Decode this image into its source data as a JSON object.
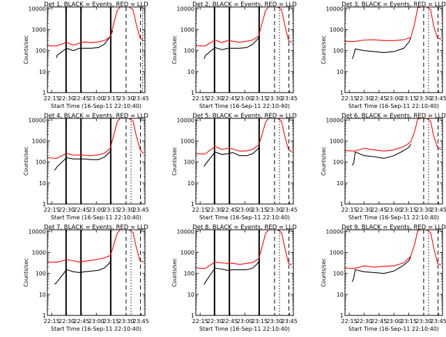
{
  "figure": {
    "xlabel": "Start Time (16-Sep-11 22:10:40)",
    "ylabel": "Counts/sec",
    "x_ticks": [
      "22:15",
      "22:30",
      "22:45",
      "23:00",
      "23:15",
      "23:30",
      "23:45"
    ],
    "y_ticks": [
      "1",
      "10",
      "100",
      "1000",
      "10000"
    ],
    "colors": {
      "events": "#000000",
      "lld": "#ff0000"
    }
  },
  "chart_data": [
    {
      "type": "line",
      "title": "Det 1, BLACK = Events, RED = LLD",
      "x_label": "Start Time (16-Sep-11 22:10:40)",
      "y_label": "Counts/sec",
      "y_scale": "log",
      "ylim": [
        1,
        12000
      ],
      "xlim": [
        "22:10:40",
        "23:49:00"
      ],
      "grid": false,
      "solid_vlines": [
        "22:29:30",
        "22:44:30",
        "23:14:30"
      ],
      "dashed_vlines": [
        "23:30:00",
        "23:44:30"
      ],
      "dotted_vlines": [
        "23:46:30"
      ],
      "series": [
        {
          "name": "Events",
          "color": "#000000",
          "x": [
            "22:10:40",
            "22:18:00",
            "22:20:00",
            "22:20:30",
            "22:30:00",
            "22:37:00",
            "22:43:00",
            "22:48:00",
            "22:55:00",
            "23:02:00",
            "23:08:00",
            "23:13:00",
            "23:15:00",
            "23:16:30",
            "23:17:00"
          ],
          "y": [
            null,
            null,
            45,
            60,
            130,
            100,
            130,
            130,
            130,
            140,
            200,
            400,
            600,
            900,
            null
          ]
        },
        {
          "name": "LLD",
          "color": "#ff0000",
          "x": [
            "22:10:40",
            "22:20:00",
            "22:30:00",
            "22:37:00",
            "22:43:00",
            "22:48:00",
            "22:55:00",
            "23:02:00",
            "23:08:00",
            "23:14:00",
            "23:17:00",
            "23:21:00",
            "23:24:00",
            "23:28:00",
            "23:33:00",
            "23:37:00",
            "23:40:00",
            "23:44:00",
            "23:47:30"
          ],
          "y": [
            170,
            165,
            250,
            180,
            230,
            260,
            240,
            260,
            300,
            450,
            1500,
            8000,
            12000,
            12000,
            12000,
            9000,
            2000,
            400,
            300
          ]
        }
      ]
    },
    {
      "type": "line",
      "title": "Det 2, BLACK = Events, RED = LLD",
      "x_label": "Start Time (16-Sep-11 22:10:40)",
      "y_label": "Counts/sec",
      "y_scale": "log",
      "ylim": [
        1,
        12000
      ],
      "xlim": [
        "22:10:40",
        "23:49:00"
      ],
      "grid": false,
      "solid_vlines": [
        "22:29:30",
        "22:44:30",
        "23:14:30"
      ],
      "dashed_vlines": [
        "23:30:00",
        "23:44:30"
      ],
      "dotted_vlines": [
        "23:35:00"
      ],
      "series": [
        {
          "name": "Events",
          "color": "#000000",
          "x": [
            "22:10:40",
            "22:19:00",
            "22:20:30",
            "22:30:00",
            "22:37:00",
            "22:43:00",
            "22:48:00",
            "22:55:00",
            "23:02:00",
            "23:08:00",
            "23:13:00",
            "23:15:00"
          ],
          "y": [
            null,
            40,
            60,
            140,
            110,
            130,
            130,
            130,
            140,
            200,
            350,
            500
          ]
        },
        {
          "name": "LLD",
          "color": "#ff0000",
          "x": [
            "22:10:40",
            "22:20:00",
            "22:30:00",
            "22:37:00",
            "22:43:00",
            "22:48:00",
            "22:55:00",
            "23:02:00",
            "23:08:00",
            "23:14:00",
            "23:17:00",
            "23:21:00",
            "23:24:00",
            "23:28:00",
            "23:33:00",
            "23:37:00",
            "23:40:00",
            "23:44:00",
            "23:47:30"
          ],
          "y": [
            170,
            165,
            320,
            240,
            300,
            280,
            250,
            280,
            320,
            500,
            1700,
            8000,
            12000,
            12000,
            12000,
            9000,
            2000,
            300,
            250
          ]
        }
      ]
    },
    {
      "type": "line",
      "title": "Det 3, BLACK = Events, RED = LLD",
      "x_label": "Start Time (16-Sep-11 22:10:40)",
      "y_label": "Counts/sec",
      "y_scale": "log",
      "ylim": [
        1,
        12000
      ],
      "xlim": [
        "22:10:40",
        "23:49:00"
      ],
      "grid": false,
      "solid_vlines": [],
      "dashed_vlines": [
        "23:30:00",
        "23:44:30"
      ],
      "dotted_vlines": [
        "23:35:00"
      ],
      "series": [
        {
          "name": "Events",
          "color": "#000000",
          "x": [
            "22:10:40",
            "22:18:00",
            "22:19:30",
            "22:21:00",
            "22:30:00",
            "22:40:00",
            "22:50:00",
            "23:00:00",
            "23:10:00",
            "23:15:00",
            "23:17:00"
          ],
          "y": [
            null,
            40,
            60,
            120,
            100,
            90,
            80,
            90,
            130,
            250,
            400
          ]
        },
        {
          "name": "LLD",
          "color": "#ff0000",
          "x": [
            "22:10:40",
            "22:20:00",
            "22:30:00",
            "22:40:00",
            "22:50:00",
            "23:00:00",
            "23:10:00",
            "23:17:00",
            "23:21:00",
            "23:24:00",
            "23:28:00",
            "23:33:00",
            "23:37:00",
            "23:40:00",
            "23:44:00",
            "23:47:30"
          ],
          "y": [
            280,
            270,
            320,
            330,
            300,
            300,
            330,
            420,
            2000,
            11000,
            12000,
            12000,
            9000,
            1500,
            400,
            350
          ]
        }
      ]
    },
    {
      "type": "line",
      "title": "Det 4, BLACK = Events, RED = LLD",
      "x_label": "Start Time (16-Sep-11 22:10:40)",
      "y_label": "Counts/sec",
      "y_scale": "log",
      "ylim": [
        1,
        12000
      ],
      "xlim": [
        "22:10:40",
        "23:49:00"
      ],
      "grid": false,
      "solid_vlines": [
        "22:29:30",
        "22:44:30",
        "23:14:30"
      ],
      "dashed_vlines": [
        "23:30:00",
        "23:44:30"
      ],
      "dotted_vlines": [
        "23:35:00"
      ],
      "series": [
        {
          "name": "Events",
          "color": "#000000",
          "x": [
            "22:10:40",
            "22:18:00",
            "22:20:30",
            "22:30:00",
            "22:37:00",
            "22:43:00",
            "22:48:00",
            "22:55:00",
            "23:02:00",
            "23:08:00",
            "23:13:00",
            "23:15:00"
          ],
          "y": [
            null,
            40,
            60,
            160,
            140,
            140,
            140,
            130,
            130,
            170,
            280,
            400
          ]
        },
        {
          "name": "LLD",
          "color": "#ff0000",
          "x": [
            "22:10:40",
            "22:20:00",
            "22:30:00",
            "22:37:00",
            "22:43:00",
            "22:48:00",
            "22:55:00",
            "23:02:00",
            "23:08:00",
            "23:14:00",
            "23:17:00",
            "23:21:00",
            "23:24:00",
            "23:28:00",
            "23:33:00",
            "23:37:00",
            "23:40:00",
            "23:44:00",
            "23:47:30"
          ],
          "y": [
            160,
            150,
            260,
            210,
            220,
            210,
            200,
            220,
            260,
            450,
            1500,
            8000,
            12000,
            12000,
            12000,
            9000,
            2000,
            400,
            250
          ]
        }
      ]
    },
    {
      "type": "line",
      "title": "Det 5, BLACK = Events, RED = LLD",
      "x_label": "Start Time (16-Sep-11 22:10:40)",
      "y_label": "Counts/sec",
      "y_scale": "log",
      "ylim": [
        1,
        12000
      ],
      "xlim": [
        "22:10:40",
        "23:49:00"
      ],
      "grid": false,
      "solid_vlines": [
        "22:29:30",
        "22:44:30",
        "23:14:30"
      ],
      "dashed_vlines": [
        "23:30:00",
        "23:44:30"
      ],
      "dotted_vlines": [
        "23:35:00"
      ],
      "series": [
        {
          "name": "Events",
          "color": "#000000",
          "x": [
            "22:10:40",
            "22:19:00",
            "22:20:30",
            "22:30:00",
            "22:37:00",
            "22:43:00",
            "22:48:00",
            "22:55:00",
            "23:02:00",
            "23:08:00",
            "23:13:00",
            "23:15:00"
          ],
          "y": [
            null,
            60,
            80,
            300,
            230,
            250,
            280,
            200,
            200,
            250,
            400,
            600
          ]
        },
        {
          "name": "LLD",
          "color": "#ff0000",
          "x": [
            "22:10:40",
            "22:20:00",
            "22:30:00",
            "22:37:00",
            "22:43:00",
            "22:48:00",
            "22:55:00",
            "23:02:00",
            "23:08:00",
            "23:14:00",
            "23:17:00",
            "23:21:00",
            "23:24:00",
            "23:28:00",
            "23:33:00",
            "23:37:00",
            "23:40:00",
            "23:44:00",
            "23:47:30"
          ],
          "y": [
            250,
            240,
            550,
            400,
            450,
            420,
            330,
            340,
            400,
            650,
            1700,
            8000,
            12000,
            12000,
            12000,
            9000,
            2000,
            400,
            300
          ]
        }
      ]
    },
    {
      "type": "line",
      "title": "Det 6, BLACK = Events, RED = LLD",
      "x_label": "Start Time (16-Sep-11 22:10:40)",
      "y_label": "Counts/sec",
      "y_scale": "log",
      "ylim": [
        1,
        12000
      ],
      "xlim": [
        "22:10:40",
        "23:49:00"
      ],
      "grid": false,
      "solid_vlines": [],
      "dashed_vlines": [
        "23:30:00",
        "23:44:30"
      ],
      "dotted_vlines": [
        "23:35:00"
      ],
      "series": [
        {
          "name": "Events",
          "color": "#000000",
          "x": [
            "22:10:40",
            "22:18:00",
            "22:19:30",
            "22:21:00",
            "22:30:00",
            "22:40:00",
            "22:50:00",
            "23:00:00",
            "23:10:00",
            "23:15:00",
            "23:17:00"
          ],
          "y": [
            null,
            70,
            90,
            300,
            200,
            180,
            150,
            200,
            350,
            500,
            700
          ]
        },
        {
          "name": "LLD",
          "color": "#ff0000",
          "x": [
            "22:10:40",
            "22:20:00",
            "22:30:00",
            "22:40:00",
            "22:50:00",
            "23:00:00",
            "23:10:00",
            "23:17:00",
            "23:21:00",
            "23:24:00",
            "23:28:00",
            "23:33:00",
            "23:37:00",
            "23:40:00",
            "23:44:00",
            "23:47:30"
          ],
          "y": [
            350,
            330,
            450,
            380,
            330,
            380,
            550,
            900,
            3000,
            11000,
            12000,
            12000,
            9000,
            1800,
            500,
            400
          ]
        }
      ]
    },
    {
      "type": "line",
      "title": "Det 7, BLACK = Events, RED = LLD",
      "x_label": "Start Time (16-Sep-11 22:10:40)",
      "y_label": "Counts/sec",
      "y_scale": "log",
      "ylim": [
        1,
        12000
      ],
      "xlim": [
        "22:10:40",
        "23:49:00"
      ],
      "grid": false,
      "solid_vlines": [
        "22:29:30",
        "22:44:30",
        "23:14:30"
      ],
      "dashed_vlines": [
        "23:30:00",
        "23:44:30"
      ],
      "dotted_vlines": [
        "23:35:00"
      ],
      "series": [
        {
          "name": "Events",
          "color": "#000000",
          "x": [
            "22:10:40",
            "22:18:00",
            "22:20:30",
            "22:30:00",
            "22:37:00",
            "22:43:00",
            "22:48:00",
            "22:55:00",
            "23:02:00",
            "23:08:00",
            "23:13:00",
            "23:15:00"
          ],
          "y": [
            null,
            30,
            40,
            150,
            120,
            110,
            120,
            130,
            140,
            180,
            300,
            450
          ]
        },
        {
          "name": "LLD",
          "color": "#ff0000",
          "x": [
            "22:10:40",
            "22:20:00",
            "22:30:00",
            "22:37:00",
            "22:43:00",
            "22:48:00",
            "22:55:00",
            "23:02:00",
            "23:08:00",
            "23:14:00",
            "23:17:00",
            "23:21:00",
            "23:24:00",
            "23:28:00",
            "23:33:00",
            "23:37:00",
            "23:40:00",
            "23:44:00",
            "23:47:30"
          ],
          "y": [
            350,
            340,
            450,
            400,
            350,
            380,
            420,
            480,
            550,
            700,
            1800,
            8000,
            12000,
            12000,
            12000,
            9000,
            2000,
            400,
            350
          ]
        }
      ]
    },
    {
      "type": "line",
      "title": "Det 8, BLACK = Events, RED = LLD",
      "x_label": "Start Time (16-Sep-11 22:10:40)",
      "y_label": "Counts/sec",
      "y_scale": "log",
      "ylim": [
        1,
        12000
      ],
      "xlim": [
        "22:10:40",
        "23:49:00"
      ],
      "grid": false,
      "solid_vlines": [
        "22:29:30",
        "22:44:30",
        "23:14:30"
      ],
      "dashed_vlines": [
        "23:30:00",
        "23:44:30"
      ],
      "dotted_vlines": [
        "23:35:00"
      ],
      "series": [
        {
          "name": "Events",
          "color": "#000000",
          "x": [
            "22:10:40",
            "22:19:00",
            "22:20:30",
            "22:30:00",
            "22:37:00",
            "22:43:00",
            "22:48:00",
            "22:55:00",
            "23:02:00",
            "23:08:00",
            "23:13:00",
            "23:15:00"
          ],
          "y": [
            null,
            30,
            40,
            180,
            160,
            140,
            150,
            150,
            150,
            180,
            300,
            450
          ]
        },
        {
          "name": "LLD",
          "color": "#ff0000",
          "x": [
            "22:10:40",
            "22:20:00",
            "22:30:00",
            "22:37:00",
            "22:43:00",
            "22:48:00",
            "22:55:00",
            "23:02:00",
            "23:08:00",
            "23:14:00",
            "23:17:00",
            "23:21:00",
            "23:24:00",
            "23:28:00",
            "23:33:00",
            "23:37:00",
            "23:40:00",
            "23:44:00",
            "23:47:30"
          ],
          "y": [
            180,
            170,
            350,
            320,
            300,
            300,
            270,
            300,
            330,
            500,
            1500,
            8000,
            12000,
            12000,
            12000,
            9000,
            2000,
            300,
            250
          ]
        }
      ]
    },
    {
      "type": "line",
      "title": "Det 9, BLACK = Events, RED = LLD",
      "x_label": "Start Time (16-Sep-11 22:10:40)",
      "y_label": "Counts/sec",
      "y_scale": "log",
      "ylim": [
        1,
        12000
      ],
      "xlim": [
        "22:10:40",
        "23:49:00"
      ],
      "grid": false,
      "solid_vlines": [],
      "dashed_vlines": [
        "23:30:00",
        "23:44:30"
      ],
      "dotted_vlines": [
        "23:35:00"
      ],
      "series": [
        {
          "name": "Events",
          "color": "#000000",
          "x": [
            "22:10:40",
            "22:18:00",
            "22:19:30",
            "22:21:00",
            "22:30:00",
            "22:40:00",
            "22:50:00",
            "23:00:00",
            "23:10:00",
            "23:15:00",
            "23:17:00"
          ],
          "y": [
            null,
            40,
            60,
            150,
            120,
            110,
            100,
            130,
            250,
            400,
            600
          ]
        },
        {
          "name": "LLD",
          "color": "#ff0000",
          "x": [
            "22:10:40",
            "22:20:00",
            "22:30:00",
            "22:40:00",
            "22:50:00",
            "23:00:00",
            "23:10:00",
            "23:17:00",
            "23:21:00",
            "23:24:00",
            "23:28:00",
            "23:33:00",
            "23:37:00",
            "23:40:00",
            "23:44:00",
            "23:47:30"
          ],
          "y": [
            180,
            170,
            230,
            200,
            220,
            230,
            320,
            650,
            2500,
            11000,
            12000,
            12000,
            9000,
            1800,
            300,
            250
          ]
        }
      ]
    }
  ]
}
